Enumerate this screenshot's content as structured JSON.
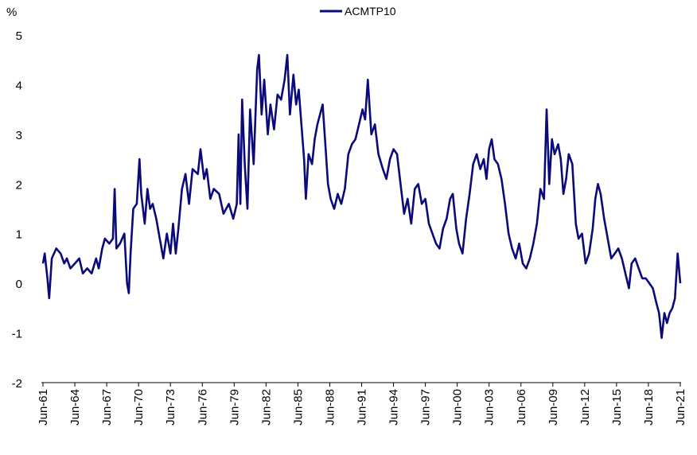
{
  "chart_data": {
    "type": "line",
    "y_unit": "%",
    "ylim": [
      -2,
      5
    ],
    "yticks": [
      "5",
      "4",
      "3",
      "2",
      "1",
      "0",
      "-1",
      "-2"
    ],
    "xlim": [
      "Jun-61",
      "Jun-21"
    ],
    "xticks": [
      "Jun-61",
      "Jun-64",
      "Jun-67",
      "Jun-70",
      "Jun-73",
      "Jun-76",
      "Jun-79",
      "Jun-82",
      "Jun-85",
      "Jun-88",
      "Jun-91",
      "Jun-94",
      "Jun-97",
      "Jun-00",
      "Jun-03",
      "Jun-06",
      "Jun-09",
      "Jun-12",
      "Jun-15",
      "Jun-18",
      "Jun-21"
    ],
    "grid": false,
    "legend_position": "top-center",
    "color": "#0a0a7a",
    "series": [
      {
        "name": "ACMTP10",
        "points": [
          [
            "1961-06",
            0.4
          ],
          [
            "1961-08",
            0.6
          ],
          [
            "1961-11",
            0.1
          ],
          [
            "1962-01",
            -0.3
          ],
          [
            "1962-04",
            0.5
          ],
          [
            "1962-09",
            0.7
          ],
          [
            "1963-02",
            0.6
          ],
          [
            "1963-06",
            0.4
          ],
          [
            "1963-09",
            0.5
          ],
          [
            "1964-01",
            0.3
          ],
          [
            "1964-06",
            0.4
          ],
          [
            "1964-11",
            0.5
          ],
          [
            "1965-03",
            0.2
          ],
          [
            "1965-08",
            0.3
          ],
          [
            "1966-01",
            0.2
          ],
          [
            "1966-06",
            0.5
          ],
          [
            "1966-09",
            0.3
          ],
          [
            "1967-01",
            0.7
          ],
          [
            "1967-04",
            0.9
          ],
          [
            "1967-09",
            0.8
          ],
          [
            "1968-01",
            0.9
          ],
          [
            "1968-03",
            1.9
          ],
          [
            "1968-05",
            0.7
          ],
          [
            "1968-09",
            0.8
          ],
          [
            "1969-02",
            1.0
          ],
          [
            "1969-05",
            0.0
          ],
          [
            "1969-07",
            -0.2
          ],
          [
            "1969-09",
            0.6
          ],
          [
            "1969-12",
            1.5
          ],
          [
            "1970-04",
            1.6
          ],
          [
            "1970-07",
            2.5
          ],
          [
            "1970-09",
            1.8
          ],
          [
            "1971-01",
            1.2
          ],
          [
            "1971-04",
            1.9
          ],
          [
            "1971-07",
            1.5
          ],
          [
            "1971-10",
            1.6
          ],
          [
            "1972-02",
            1.3
          ],
          [
            "1972-06",
            0.9
          ],
          [
            "1972-10",
            0.5
          ],
          [
            "1973-02",
            1.0
          ],
          [
            "1973-06",
            0.6
          ],
          [
            "1973-09",
            1.2
          ],
          [
            "1973-12",
            0.6
          ],
          [
            "1974-03",
            1.1
          ],
          [
            "1974-07",
            1.9
          ],
          [
            "1974-11",
            2.2
          ],
          [
            "1975-03",
            1.6
          ],
          [
            "1975-07",
            2.3
          ],
          [
            "1976-01",
            2.2
          ],
          [
            "1976-04",
            2.7
          ],
          [
            "1976-08",
            2.1
          ],
          [
            "1976-11",
            2.3
          ],
          [
            "1977-03",
            1.7
          ],
          [
            "1977-07",
            1.9
          ],
          [
            "1978-01",
            1.8
          ],
          [
            "1978-06",
            1.4
          ],
          [
            "1978-12",
            1.6
          ],
          [
            "1979-05",
            1.3
          ],
          [
            "1979-09",
            1.6
          ],
          [
            "1979-11",
            3.0
          ],
          [
            "1980-01",
            1.6
          ],
          [
            "1980-03",
            3.7
          ],
          [
            "1980-06",
            2.4
          ],
          [
            "1980-09",
            1.5
          ],
          [
            "1980-12",
            3.5
          ],
          [
            "1981-04",
            2.4
          ],
          [
            "1981-08",
            4.3
          ],
          [
            "1981-10",
            4.6
          ],
          [
            "1982-01",
            3.4
          ],
          [
            "1982-04",
            4.1
          ],
          [
            "1982-08",
            3.0
          ],
          [
            "1982-11",
            3.6
          ],
          [
            "1983-03",
            3.1
          ],
          [
            "1983-07",
            3.8
          ],
          [
            "1983-11",
            3.7
          ],
          [
            "1984-03",
            4.1
          ],
          [
            "1984-06",
            4.6
          ],
          [
            "1984-09",
            3.4
          ],
          [
            "1985-01",
            4.2
          ],
          [
            "1985-04",
            3.6
          ],
          [
            "1985-07",
            3.9
          ],
          [
            "1985-10",
            3.2
          ],
          [
            "1986-01",
            2.5
          ],
          [
            "1986-03",
            1.7
          ],
          [
            "1986-06",
            2.6
          ],
          [
            "1986-10",
            2.4
          ],
          [
            "1987-01",
            2.9
          ],
          [
            "1987-04",
            3.2
          ],
          [
            "1987-07",
            3.4
          ],
          [
            "1987-10",
            3.6
          ],
          [
            "1988-01",
            2.8
          ],
          [
            "1988-04",
            2.0
          ],
          [
            "1988-07",
            1.7
          ],
          [
            "1988-11",
            1.5
          ],
          [
            "1989-03",
            1.8
          ],
          [
            "1989-07",
            1.6
          ],
          [
            "1989-11",
            1.9
          ],
          [
            "1990-03",
            2.6
          ],
          [
            "1990-07",
            2.8
          ],
          [
            "1990-11",
            2.9
          ],
          [
            "1991-03",
            3.2
          ],
          [
            "1991-07",
            3.5
          ],
          [
            "1991-10",
            3.3
          ],
          [
            "1992-01",
            4.1
          ],
          [
            "1992-05",
            3.0
          ],
          [
            "1992-09",
            3.2
          ],
          [
            "1993-01",
            2.6
          ],
          [
            "1993-06",
            2.3
          ],
          [
            "1993-10",
            2.1
          ],
          [
            "1994-02",
            2.5
          ],
          [
            "1994-06",
            2.7
          ],
          [
            "1994-10",
            2.6
          ],
          [
            "1995-02",
            2.0
          ],
          [
            "1995-06",
            1.4
          ],
          [
            "1995-10",
            1.7
          ],
          [
            "1996-02",
            1.2
          ],
          [
            "1996-06",
            1.9
          ],
          [
            "1996-10",
            2.0
          ],
          [
            "1997-02",
            1.6
          ],
          [
            "1997-06",
            1.7
          ],
          [
            "1997-10",
            1.2
          ],
          [
            "1998-02",
            1.0
          ],
          [
            "1998-06",
            0.8
          ],
          [
            "1998-10",
            0.7
          ],
          [
            "1999-02",
            1.1
          ],
          [
            "1999-06",
            1.3
          ],
          [
            "1999-10",
            1.7
          ],
          [
            "2000-01",
            1.8
          ],
          [
            "2000-05",
            1.1
          ],
          [
            "2000-08",
            0.8
          ],
          [
            "2000-12",
            0.6
          ],
          [
            "2001-04",
            1.3
          ],
          [
            "2001-08",
            1.8
          ],
          [
            "2001-12",
            2.4
          ],
          [
            "2002-04",
            2.6
          ],
          [
            "2002-08",
            2.3
          ],
          [
            "2002-12",
            2.5
          ],
          [
            "2003-03",
            2.1
          ],
          [
            "2003-06",
            2.7
          ],
          [
            "2003-09",
            2.9
          ],
          [
            "2003-12",
            2.5
          ],
          [
            "2004-04",
            2.4
          ],
          [
            "2004-08",
            2.1
          ],
          [
            "2004-12",
            1.6
          ],
          [
            "2005-04",
            1.0
          ],
          [
            "2005-08",
            0.7
          ],
          [
            "2005-12",
            0.5
          ],
          [
            "2006-04",
            0.8
          ],
          [
            "2006-08",
            0.4
          ],
          [
            "2006-12",
            0.3
          ],
          [
            "2007-04",
            0.5
          ],
          [
            "2007-08",
            0.8
          ],
          [
            "2007-12",
            1.2
          ],
          [
            "2008-04",
            1.9
          ],
          [
            "2008-08",
            1.7
          ],
          [
            "2008-11",
            3.5
          ],
          [
            "2009-02",
            2.0
          ],
          [
            "2009-05",
            2.9
          ],
          [
            "2009-08",
            2.6
          ],
          [
            "2009-12",
            2.8
          ],
          [
            "2010-03",
            2.5
          ],
          [
            "2010-06",
            1.8
          ],
          [
            "2010-09",
            2.1
          ],
          [
            "2010-12",
            2.6
          ],
          [
            "2011-04",
            2.4
          ],
          [
            "2011-08",
            1.2
          ],
          [
            "2011-11",
            0.9
          ],
          [
            "2012-03",
            1.0
          ],
          [
            "2012-07",
            0.4
          ],
          [
            "2012-11",
            0.6
          ],
          [
            "2013-03",
            1.1
          ],
          [
            "2013-06",
            1.7
          ],
          [
            "2013-09",
            2.0
          ],
          [
            "2013-12",
            1.8
          ],
          [
            "2014-04",
            1.3
          ],
          [
            "2014-08",
            0.9
          ],
          [
            "2014-12",
            0.5
          ],
          [
            "2015-04",
            0.6
          ],
          [
            "2015-08",
            0.7
          ],
          [
            "2015-12",
            0.5
          ],
          [
            "2016-04",
            0.2
          ],
          [
            "2016-08",
            -0.1
          ],
          [
            "2016-11",
            0.4
          ],
          [
            "2017-03",
            0.5
          ],
          [
            "2017-07",
            0.3
          ],
          [
            "2017-11",
            0.1
          ],
          [
            "2018-03",
            0.1
          ],
          [
            "2018-07",
            0.0
          ],
          [
            "2018-11",
            -0.1
          ],
          [
            "2019-03",
            -0.4
          ],
          [
            "2019-06",
            -0.6
          ],
          [
            "2019-09",
            -1.1
          ],
          [
            "2019-12",
            -0.6
          ],
          [
            "2020-03",
            -0.8
          ],
          [
            "2020-06",
            -0.6
          ],
          [
            "2020-09",
            -0.5
          ],
          [
            "2020-12",
            -0.3
          ],
          [
            "2021-03",
            0.6
          ],
          [
            "2021-06",
            0.0
          ]
        ]
      }
    ]
  }
}
